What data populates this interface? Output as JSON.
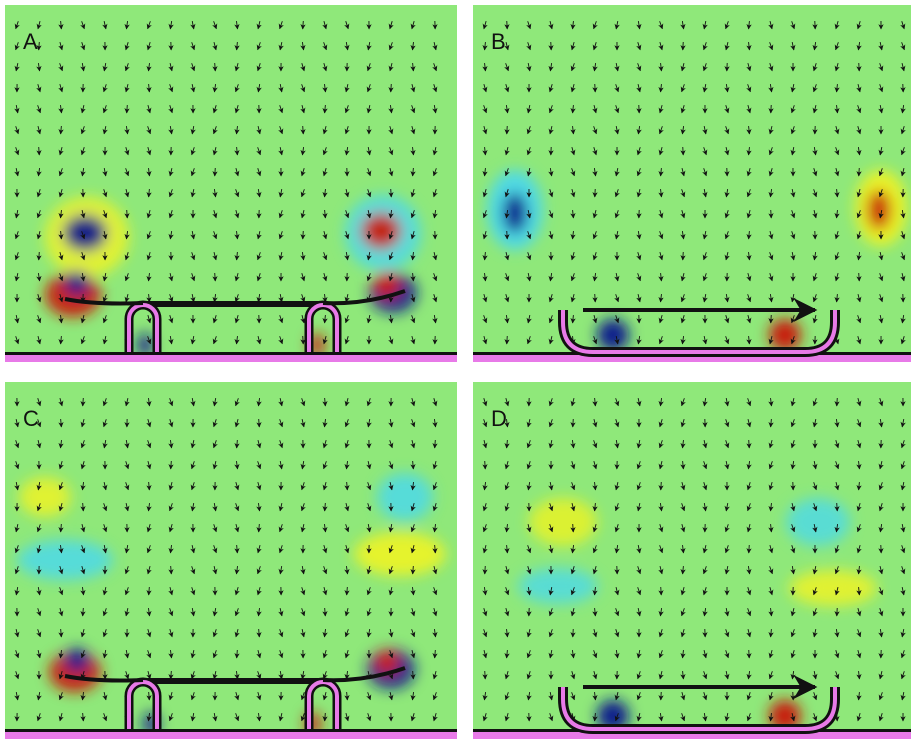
{
  "panels": [
    {
      "label": "A",
      "config": "extended"
    },
    {
      "label": "B",
      "config": "compact"
    },
    {
      "label": "C",
      "config": "extended"
    },
    {
      "label": "D",
      "config": "compact"
    }
  ],
  "colors": {
    "background_field": "#8fe87a",
    "positive_vorticity": "#c81e0a",
    "negative_vorticity": "#0a1a8c",
    "weak_positive": "#f4f41e",
    "weak_negative": "#48d8f0",
    "arrows": "#111111",
    "body_outline": "#111111",
    "body_fill": "#e87ae8",
    "floor": "#e87ae8"
  }
}
